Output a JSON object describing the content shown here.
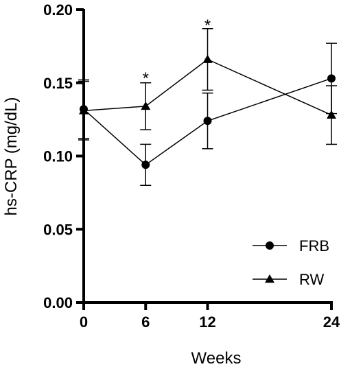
{
  "chart_data": {
    "type": "line",
    "xlabel": "Weeks",
    "ylabel": "hs-CRP (mg/dL)",
    "xlim": [
      0,
      24
    ],
    "ylim": [
      0,
      0.2
    ],
    "x_ticks": [
      0,
      6,
      12,
      24
    ],
    "x_tick_labels": [
      "0",
      "6",
      "12",
      "24"
    ],
    "y_ticks": [
      0,
      0.05,
      0.1,
      0.15,
      0.2
    ],
    "y_tick_labels": [
      "0.00",
      "0.05",
      "0.10",
      "0.15",
      "0.20"
    ],
    "grid": false,
    "legend_position": "bottom-right",
    "series": [
      {
        "name": "FRB",
        "marker": "circle",
        "x": [
          0,
          6,
          12,
          24
        ],
        "y": [
          0.132,
          0.094,
          0.124,
          0.153
        ],
        "err_low": [
          0.112,
          0.08,
          0.105,
          0.129
        ],
        "err_high": [
          0.152,
          0.108,
          0.143,
          0.177
        ]
      },
      {
        "name": "RW",
        "marker": "triangle",
        "x": [
          0,
          6,
          12,
          24
        ],
        "y": [
          0.131,
          0.134,
          0.166,
          0.128
        ],
        "err_low": [
          0.111,
          0.118,
          0.145,
          0.108
        ],
        "err_high": [
          0.151,
          0.15,
          0.187,
          0.148
        ]
      }
    ],
    "annotations": [
      {
        "text": "*",
        "x": 6,
        "y": 0.156
      },
      {
        "text": "*",
        "x": 12,
        "y": 0.192
      }
    ],
    "colors": {
      "line": "#000000",
      "background": "#ffffff"
    }
  }
}
